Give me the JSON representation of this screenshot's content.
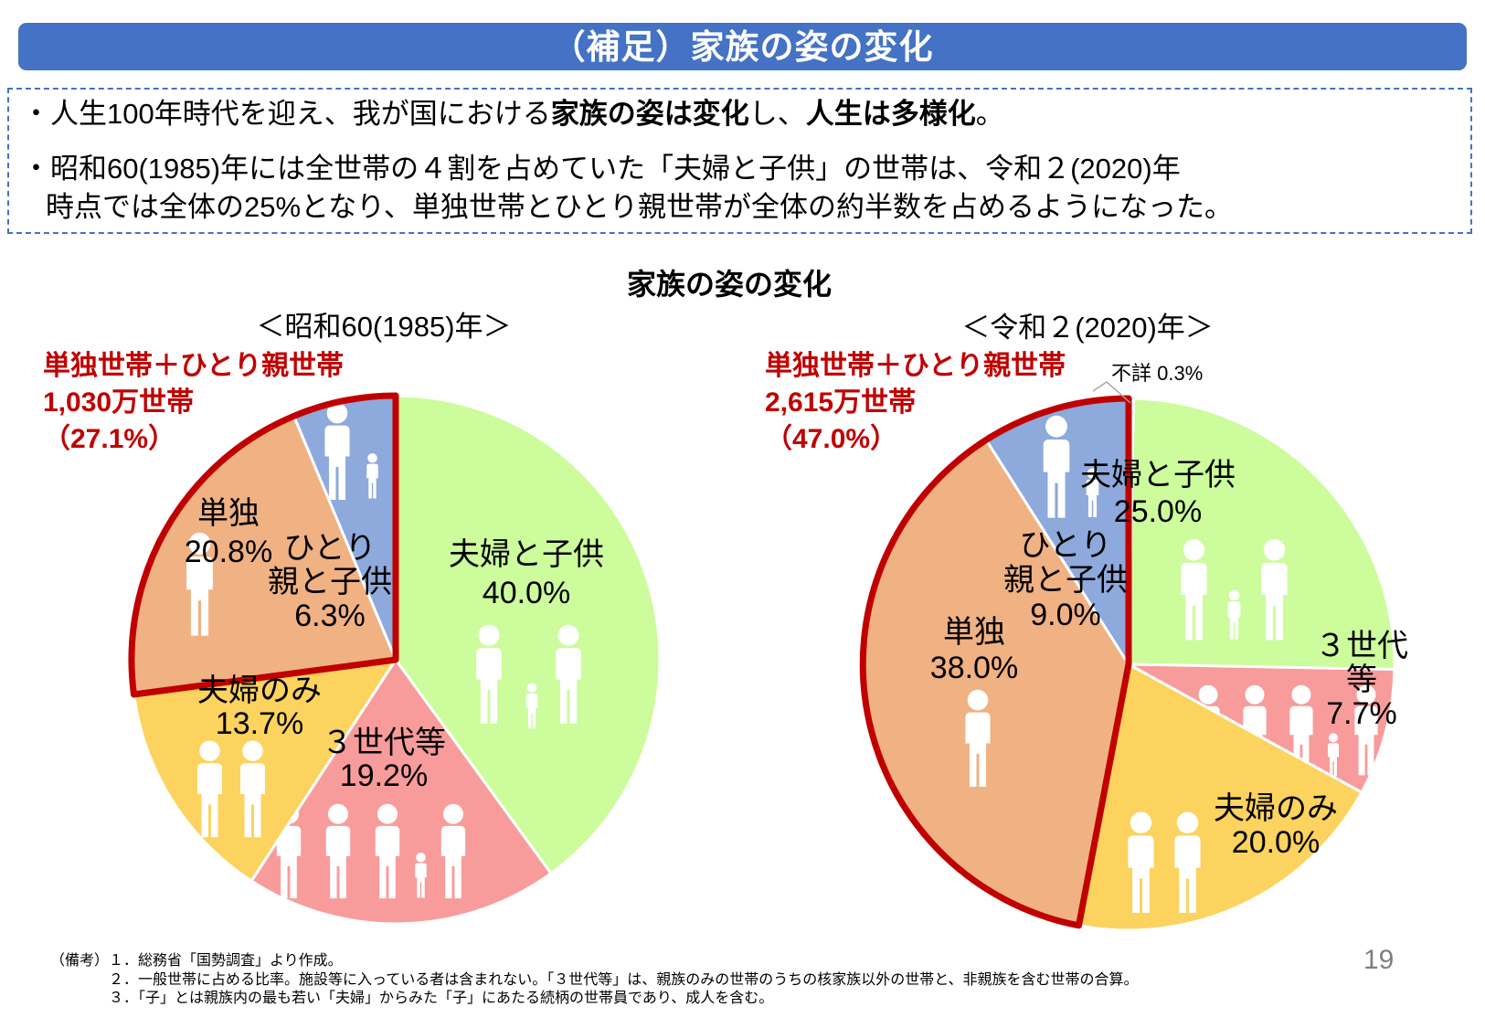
{
  "header": {
    "title": "（補足）家族の姿の変化"
  },
  "summary": {
    "bullet1_pre": "・人生100年時代を迎え、我が国における",
    "bullet1_bold1": "家族の姿は変化",
    "bullet1_mid": "し、",
    "bullet1_bold2": "人生は多様化",
    "bullet1_post": "。",
    "bullet2_line1": "・昭和60(1985)年には全世帯の４割を占めていた「夫婦と子供」の世帯は、令和２(2020)年",
    "bullet2_line2": "時点では全体の25%となり、単独世帯とひとり親世帯が全体の約半数を占めるようになった。"
  },
  "chart_title": "家族の姿の変化",
  "colors": {
    "accent_blue": "#4472C4",
    "highlight_red": "#C00000",
    "icon_white": "#FFFFFF"
  },
  "chart_data": [
    {
      "type": "pie",
      "title": "＜昭和60(1985)年＞",
      "direction": "clockwise",
      "start_angle_deg": 0,
      "annotation": {
        "lines": "単独世帯＋ひとり親世帯\n1,030万世帯\n（27.1%）",
        "households": "1,030万世帯",
        "pct": 27.1
      },
      "slices": [
        {
          "label": "夫婦と子供",
          "value_pct": 40.0,
          "color": "#CCFC9C",
          "label_lines": "夫婦と子供\n40.0%",
          "highlight_group": false
        },
        {
          "label": "３世代等",
          "value_pct": 19.2,
          "color": "#F89C9B",
          "label_lines": "３世代等\n19.2%",
          "highlight_group": false
        },
        {
          "label": "夫婦のみ",
          "value_pct": 13.7,
          "color": "#FBD35E",
          "label_lines": "夫婦のみ\n13.7%",
          "highlight_group": false
        },
        {
          "label": "単独",
          "value_pct": 20.8,
          "color": "#F0B183",
          "label_lines": "単独\n20.8%",
          "highlight_group": true
        },
        {
          "label": "ひとり親と子供",
          "value_pct": 6.3,
          "color": "#8EA9DB",
          "label_lines": "ひとり\n親と子供\n6.3%",
          "highlight_group": true
        }
      ]
    },
    {
      "type": "pie",
      "title": "＜令和２(2020)年＞",
      "direction": "clockwise",
      "start_angle_deg": 0,
      "annotation": {
        "lines": "単独世帯＋ひとり親世帯\n2,615万世帯\n（47.0%）",
        "households": "2,615万世帯",
        "pct": 47.0
      },
      "slices": [
        {
          "label": "不詳",
          "value_pct": 0.3,
          "color": "#FFFFFF",
          "label_lines": "",
          "callout_label": "不詳 0.3%",
          "highlight_group": false
        },
        {
          "label": "夫婦と子供",
          "value_pct": 25.0,
          "color": "#CCFC9C",
          "label_lines": "夫婦と子供\n25.0%",
          "highlight_group": false
        },
        {
          "label": "３世代等",
          "value_pct": 7.7,
          "color": "#F89C9B",
          "label_lines": "３世代等\n7.7%",
          "highlight_group": false
        },
        {
          "label": "夫婦のみ",
          "value_pct": 20.0,
          "color": "#FBD35E",
          "label_lines": "夫婦のみ\n20.0%",
          "highlight_group": false
        },
        {
          "label": "単独",
          "value_pct": 38.0,
          "color": "#F0B183",
          "label_lines": "単独\n38.0%",
          "highlight_group": true
        },
        {
          "label": "ひとり親と子供",
          "value_pct": 9.0,
          "color": "#8EA9DB",
          "label_lines": "ひとり\n親と子供\n9.0%",
          "highlight_group": true
        }
      ]
    }
  ],
  "notes": {
    "line1": "（備考）１．総務省「国勢調査」より作成。",
    "line2": "２．一般世帯に占める比率。施設等に入っている者は含まれない。「３世代等」は、親族のみの世帯のうちの核家族以外の世帯と、非親族を含む世帯の合算。",
    "line3": "３．「子」とは親族内の最も若い「夫婦」からみた「子」にあたる続柄の世帯員であり、成人を含む。"
  },
  "page_number": "19"
}
